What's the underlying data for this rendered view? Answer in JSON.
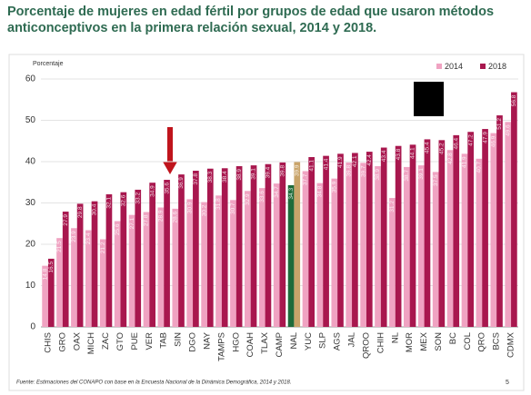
{
  "chart_data": {
    "type": "bar",
    "title": "Porcentaje de mujeres en edad fértil por grupos de edad que usaron métodos anticonceptivos en la primera relación sexual, 2014 y 2018.",
    "y_label": "Porcentaje",
    "source": "Fuente: Estimaciones del CONAPO con base en la Encuesta Nacional de la Dinámica Demográfica, 2014 y 2018.",
    "page_number": "5",
    "categories": [
      "CHIS",
      "GRO",
      "OAX",
      "MICH",
      "ZAC",
      "GTO",
      "PUE",
      "VER",
      "TAB",
      "SIN",
      "DGO",
      "NAY",
      "TAMPS",
      "HGO",
      "COAH",
      "TLAX",
      "CAMP",
      "NAL",
      "YUC",
      "SLP",
      "AGS",
      "JAL",
      "QROO",
      "CHIH",
      "NL",
      "MOR",
      "MEX",
      "SON",
      "BC",
      "COL",
      "QRO",
      "BCS",
      "CDMX"
    ],
    "series": [
      {
        "name": "2014",
        "color": "#f0a3c2",
        "colors": [
          "#f0a3c2",
          "#f0a3c2",
          "#f0a3c2",
          "#f0a3c2",
          "#f0a3c2",
          "#f0a3c2",
          "#f0a3c2",
          "#f0a3c2",
          "#f0a3c2",
          "#f0a3c2",
          "#f0a3c2",
          "#f0a3c2",
          "#f0a3c2",
          "#f0a3c2",
          "#f0a3c2",
          "#f0a3c2",
          "#f0a3c2",
          "#1f6b3a",
          "#f0a3c2",
          "#f0a3c2",
          "#f0a3c2",
          "#f0a3c2",
          "#f0a3c2",
          "#f0a3c2",
          "#f0a3c2",
          "#f0a3c2",
          "#f0a3c2",
          "#f0a3c2",
          "#f0a3c2",
          "#f0a3c2",
          "#f0a3c2",
          "#f0a3c2",
          "#f0a3c2"
        ],
        "values": [
          14.8,
          21.5,
          23.9,
          23.4,
          21.2,
          25.6,
          27.1,
          27.8,
          28.9,
          28.6,
          30.9,
          30.2,
          31.8,
          30.7,
          32.9,
          33.6,
          34.7,
          34.3,
          37.7,
          34.8,
          35.9,
          39.8,
          39.7,
          38.9,
          31.2,
          38.7,
          39.1,
          37.5,
          42.8,
          41.9,
          40.7,
          46.9,
          49.6
        ]
      },
      {
        "name": "2018",
        "color": "#a8174e",
        "colors": [
          "#a8174e",
          "#a8174e",
          "#a8174e",
          "#a8174e",
          "#a8174e",
          "#a8174e",
          "#a8174e",
          "#a8174e",
          "#a8174e",
          "#a8174e",
          "#a8174e",
          "#a8174e",
          "#a8174e",
          "#a8174e",
          "#a8174e",
          "#a8174e",
          "#a8174e",
          "#c9a46a",
          "#a8174e",
          "#a8174e",
          "#a8174e",
          "#a8174e",
          "#a8174e",
          "#a8174e",
          "#a8174e",
          "#a8174e",
          "#a8174e",
          "#a8174e",
          "#a8174e",
          "#a8174e",
          "#a8174e",
          "#a8174e",
          "#a8174e"
        ],
        "values": [
          16.5,
          27.9,
          29.8,
          30.4,
          32.1,
          32.6,
          33.2,
          34.9,
          35.6,
          36.9,
          37.8,
          38.3,
          38.4,
          38.9,
          39.1,
          39.4,
          39.8,
          39.9,
          41.1,
          41.4,
          41.9,
          42.1,
          42.4,
          43.4,
          43.8,
          44.1,
          45.4,
          45.2,
          46.4,
          47.2,
          47.9,
          51.2,
          56.8
        ]
      }
    ],
    "ylim": [
      0,
      60
    ],
    "yticks": [
      0,
      10,
      20,
      30,
      40,
      50,
      60
    ],
    "grid": true,
    "legend": "top-right"
  }
}
